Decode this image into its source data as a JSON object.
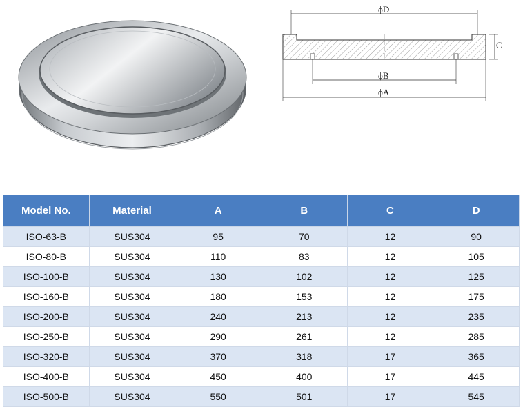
{
  "drawing": {
    "label_d": "ϕD",
    "label_b": "ϕB",
    "label_a": "ϕA",
    "label_c": "C"
  },
  "table": {
    "headers": [
      "Model No.",
      "Material",
      "A",
      "B",
      "C",
      "D"
    ],
    "rows": [
      [
        "ISO-63-B",
        "SUS304",
        "95",
        "70",
        "12",
        "90"
      ],
      [
        "ISO-80-B",
        "SUS304",
        "110",
        "83",
        "12",
        "105"
      ],
      [
        "ISO-100-B",
        "SUS304",
        "130",
        "102",
        "12",
        "125"
      ],
      [
        "ISO-160-B",
        "SUS304",
        "180",
        "153",
        "12",
        "175"
      ],
      [
        "ISO-200-B",
        "SUS304",
        "240",
        "213",
        "12",
        "235"
      ],
      [
        "ISO-250-B",
        "SUS304",
        "290",
        "261",
        "12",
        "285"
      ],
      [
        "ISO-320-B",
        "SUS304",
        "370",
        "318",
        "17",
        "365"
      ],
      [
        "ISO-400-B",
        "SUS304",
        "450",
        "400",
        "17",
        "445"
      ],
      [
        "ISO-500-B",
        "SUS304",
        "550",
        "501",
        "17",
        "545"
      ]
    ]
  },
  "colors": {
    "header_bg": "#4a7ec2",
    "row_alt": "#dbe5f3"
  }
}
